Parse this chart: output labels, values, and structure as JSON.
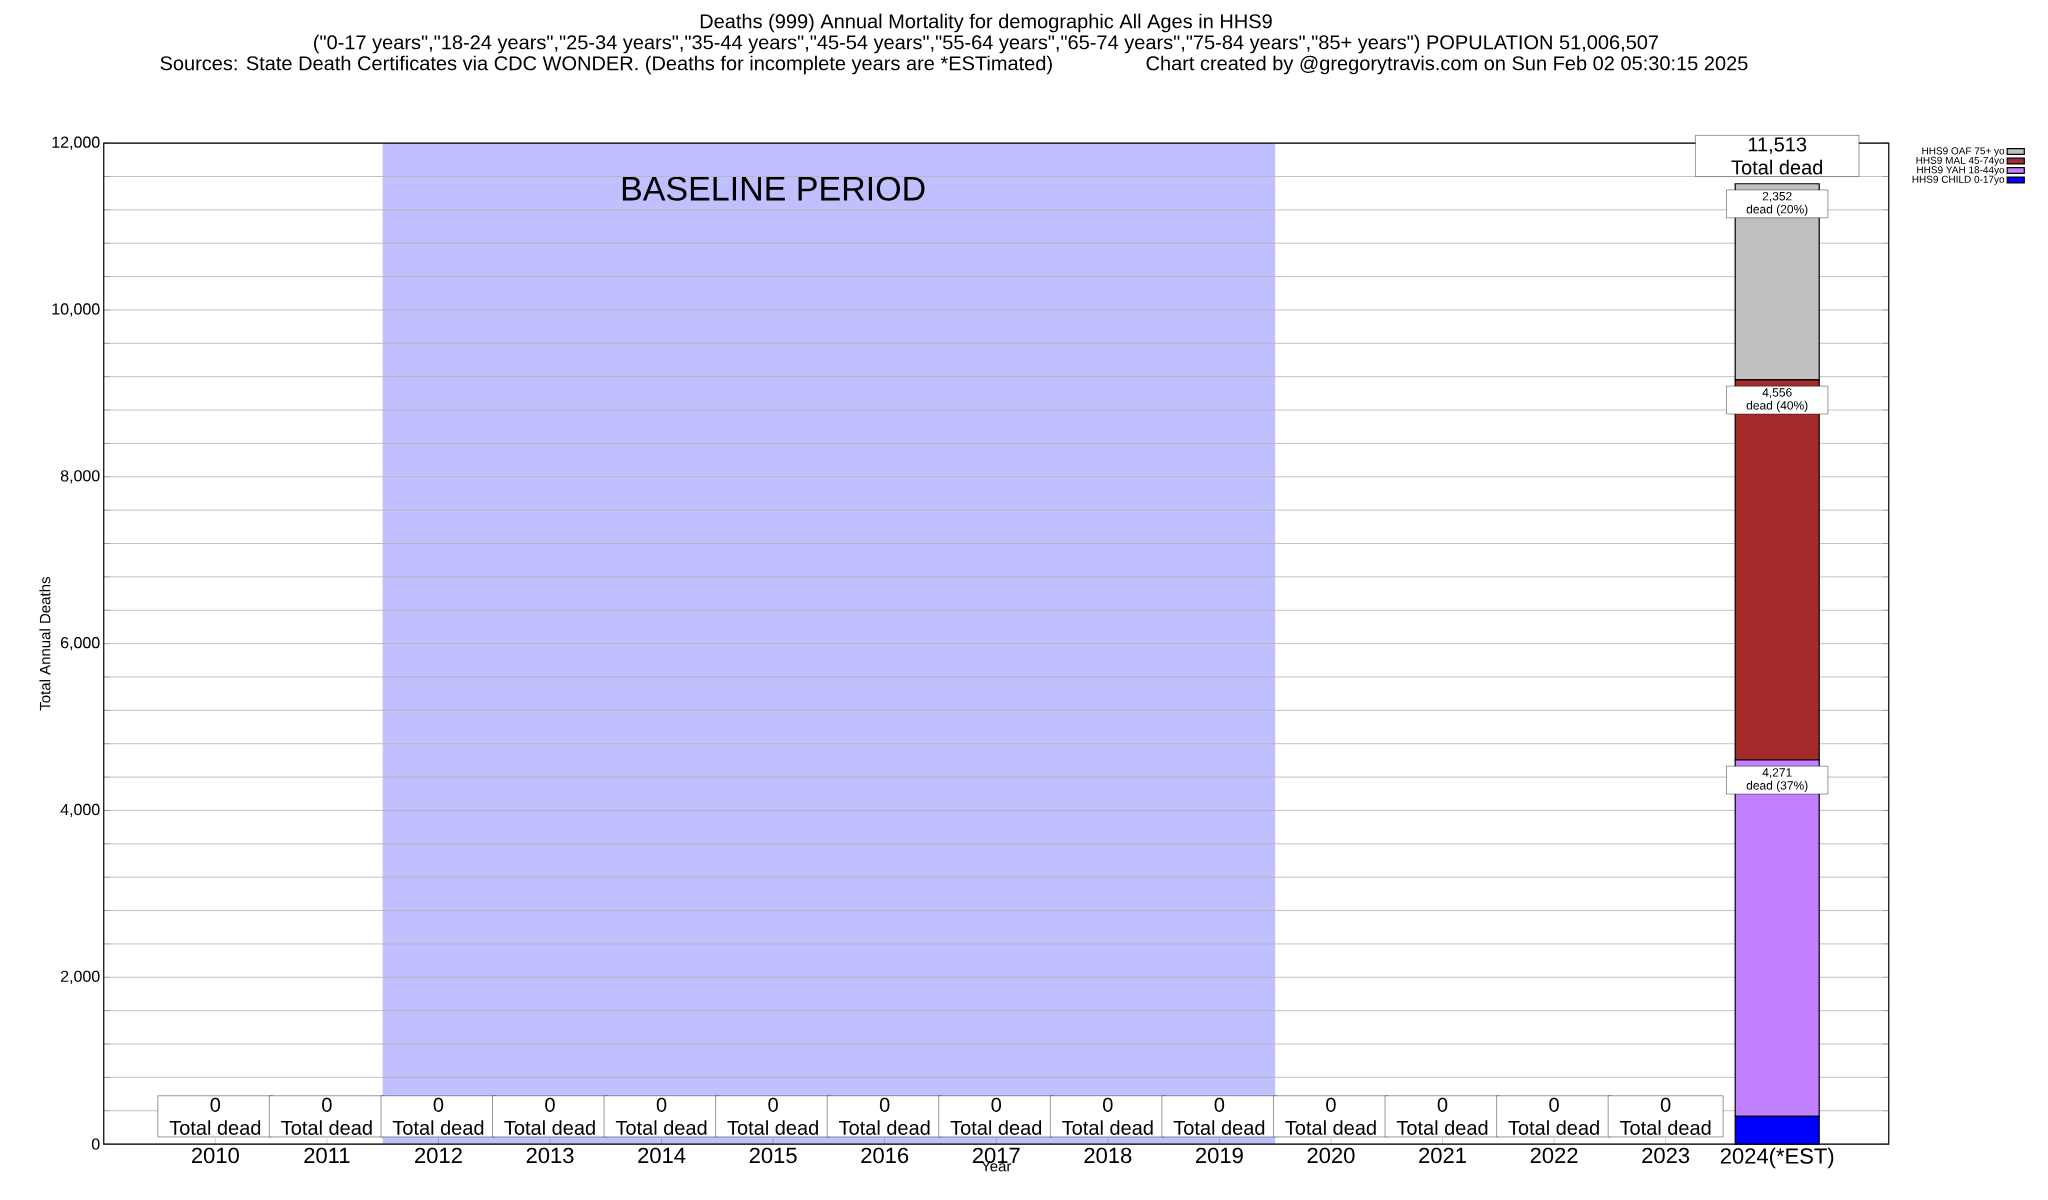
{
  "chart_data": {
    "type": "bar",
    "stacked": true,
    "title": "Deaths (999) Annual Mortality for demographic All Ages in HHS9",
    "subtitle": "(\"0-17 years\",\"18-24 years\",\"25-34 years\",\"35-44 years\",\"45-54 years\",\"55-64 years\",\"65-74 years\",\"75-84 years\",\"85+ years\") POPULATION 51,006,507",
    "annotations": [
      "Sources: State Death Certificates via CDC WONDER. (Deaths for incomplete years are *ESTimated)",
      "Chart created by @gregorytravis.com on Sun Feb 02 05:30:15 2025"
    ],
    "xlabel": "Year",
    "ylabel": "Total Annual Deaths",
    "categories": [
      "2010",
      "2011",
      "2012",
      "2013",
      "2014",
      "2015",
      "2016",
      "2017",
      "2018",
      "2019",
      "2020",
      "2021",
      "2022",
      "2023",
      "2024(*EST)"
    ],
    "series": [
      {
        "name": "HHS9 CHILD 0-17yo",
        "color": "#0000ff",
        "values": [
          0,
          0,
          0,
          0,
          0,
          0,
          0,
          0,
          0,
          0,
          0,
          0,
          0,
          0,
          334
        ],
        "value_labels": [
          null,
          null,
          null,
          null,
          null,
          null,
          null,
          null,
          null,
          null,
          null,
          null,
          null,
          null,
          null
        ]
      },
      {
        "name": "HHS9 YAH 18-44yo",
        "color": "#c080ff",
        "values": [
          0,
          0,
          0,
          0,
          0,
          0,
          0,
          0,
          0,
          0,
          0,
          0,
          0,
          0,
          4271
        ],
        "value_labels": [
          null,
          null,
          null,
          null,
          null,
          null,
          null,
          null,
          null,
          null,
          null,
          null,
          null,
          null,
          "4,271 dead (37%)"
        ]
      },
      {
        "name": "HHS9 MAL 45-74yo",
        "color": "#a52a2a",
        "values": [
          0,
          0,
          0,
          0,
          0,
          0,
          0,
          0,
          0,
          0,
          0,
          0,
          0,
          0,
          4556
        ],
        "value_labels": [
          null,
          null,
          null,
          null,
          null,
          null,
          null,
          null,
          null,
          null,
          null,
          null,
          null,
          null,
          "4,556 dead (40%)"
        ]
      },
      {
        "name": "HHS9 OAF 75+ yo",
        "color": "#c0c0c0",
        "values": [
          0,
          0,
          0,
          0,
          0,
          0,
          0,
          0,
          0,
          0,
          0,
          0,
          0,
          0,
          2352
        ],
        "value_labels": [
          null,
          null,
          null,
          null,
          null,
          null,
          null,
          null,
          null,
          null,
          null,
          null,
          null,
          null,
          "2,352 dead (20%)"
        ]
      }
    ],
    "totals": [
      "0 Total dead",
      "0 Total dead",
      "0 Total dead",
      "0 Total dead",
      "0 Total dead",
      "0 Total dead",
      "0 Total dead",
      "0 Total dead",
      "0 Total dead",
      "0 Total dead",
      "0 Total dead",
      "0 Total dead",
      "0 Total dead",
      "0 Total dead",
      "11,513 Total dead"
    ],
    "ylim": [
      0,
      12000
    ],
    "yticks": [
      0,
      {
        "value": 400,
        "label": null
      },
      {
        "value": 800,
        "label": null
      },
      {
        "value": 1200,
        "label": null
      },
      {
        "value": 1600,
        "label": null
      },
      {
        "value": 2000,
        "label": "2,000"
      },
      {
        "value": 2400,
        "label": null
      },
      {
        "value": 2800,
        "label": null
      },
      {
        "value": 3200,
        "label": null
      },
      {
        "value": 3600,
        "label": null
      },
      {
        "value": 4000,
        "label": "4,000"
      },
      {
        "value": 4400,
        "label": null
      },
      {
        "value": 4800,
        "label": null
      },
      {
        "value": 5200,
        "label": null
      },
      {
        "value": 5600,
        "label": null
      },
      {
        "value": 6000,
        "label": "6,000"
      },
      {
        "value": 6400,
        "label": null
      },
      {
        "value": 6800,
        "label": null
      },
      {
        "value": 7200,
        "label": null
      },
      {
        "value": 7600,
        "label": null
      },
      {
        "value": 8000,
        "label": "8,000"
      },
      {
        "value": 8400,
        "label": null
      },
      {
        "value": 8800,
        "label": null
      },
      {
        "value": 9200,
        "label": null
      },
      {
        "value": 9600,
        "label": null
      },
      {
        "value": 10000,
        "label": "10,000"
      },
      {
        "value": 10400,
        "label": null
      },
      {
        "value": 10800,
        "label": null
      },
      {
        "value": 11200,
        "label": null
      },
      {
        "value": 11600,
        "label": null
      },
      {
        "value": 12000,
        "label": "12,000"
      }
    ],
    "bands": [
      {
        "axis": "x",
        "from": "2012",
        "to": "2019",
        "label": "BASELINE PERIOD",
        "color": "#c0c0ff"
      }
    ],
    "grid": "y",
    "legend": "top right"
  }
}
